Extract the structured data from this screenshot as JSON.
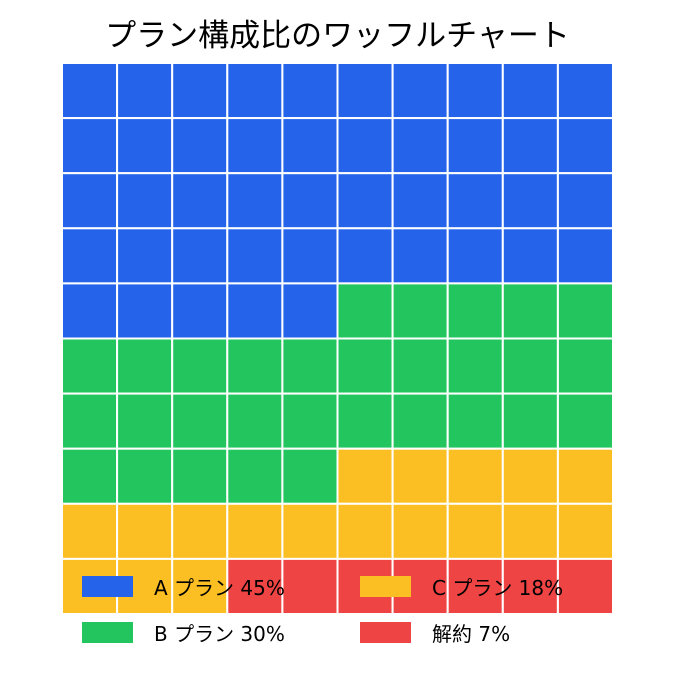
{
  "chart_data": {
    "type": "waffle",
    "title": "プラン構成比のワッフルチャート",
    "grid": {
      "rows": 10,
      "cols": 10
    },
    "categories": [
      {
        "name": "A プラン",
        "value": 45,
        "color": "#2563eb",
        "legend_label": "A プラン 45%"
      },
      {
        "name": "B プラン",
        "value": 30,
        "color": "#22c55e",
        "legend_label": "B プラン 30%"
      },
      {
        "name": "C プラン",
        "value": 18,
        "color": "#fbbf24",
        "legend_label": "C プラン 18%"
      },
      {
        "name": "解約",
        "value": 7,
        "color": "#ef4444",
        "legend_label": "解約 7%"
      }
    ],
    "legend_placement": "bottom-overlay",
    "legend_order": [
      0,
      2,
      1,
      3
    ]
  }
}
